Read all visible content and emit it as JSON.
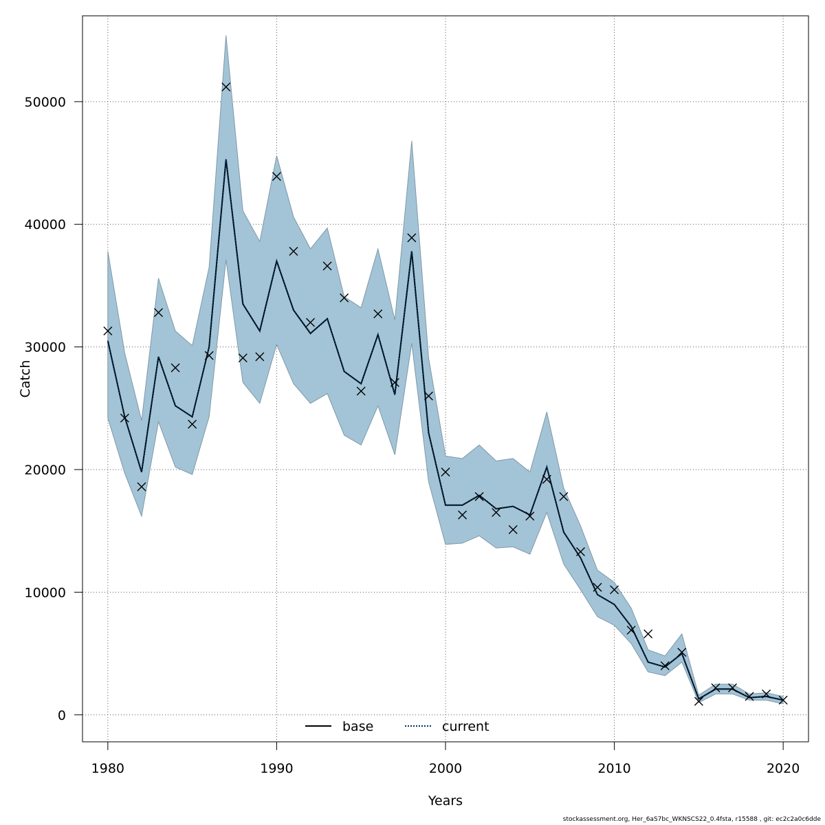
{
  "chart_data": {
    "type": "line",
    "xlabel": "Years",
    "ylabel": "Catch",
    "xlim": [
      1978.5,
      2021.5
    ],
    "ylim": [
      -2200,
      57000
    ],
    "x_ticks": [
      1980,
      1990,
      2000,
      2010,
      2020
    ],
    "y_ticks": [
      0,
      10000,
      20000,
      30000,
      40000,
      50000
    ],
    "grid": true,
    "legend_position": "bottom-center",
    "colors": {
      "band_fill": "#a3c4d6",
      "band_stroke": "#7f98a8",
      "current_line": "#00305a",
      "base_line": "#000000",
      "grid": "#555555"
    },
    "x": [
      1980,
      1981,
      1982,
      1983,
      1984,
      1985,
      1986,
      1987,
      1988,
      1989,
      1990,
      1991,
      1992,
      1993,
      1994,
      1995,
      1996,
      1997,
      1998,
      1999,
      2000,
      2001,
      2002,
      2003,
      2004,
      2005,
      2006,
      2007,
      2008,
      2009,
      2010,
      2011,
      2012,
      2013,
      2014,
      2015,
      2016,
      2017,
      2018,
      2019,
      2020
    ],
    "series": [
      {
        "name": "base",
        "style": "solid",
        "values": [
          30500,
          24300,
          19800,
          29200,
          25200,
          24300,
          30000,
          45300,
          33500,
          31300,
          37000,
          33000,
          31100,
          32300,
          28000,
          27000,
          31000,
          26100,
          37800,
          23000,
          17100,
          17100,
          17900,
          16800,
          17000,
          16300,
          20200,
          14900,
          12800,
          9800,
          9000,
          7200,
          4300,
          3900,
          5000,
          1300,
          2100,
          2100,
          1400,
          1500,
          1200
        ]
      },
      {
        "name": "current",
        "style": "dotted",
        "values": [
          30500,
          24300,
          19800,
          29200,
          25200,
          24300,
          30000,
          45300,
          33500,
          31300,
          37000,
          33000,
          31100,
          32300,
          28000,
          27000,
          31000,
          26100,
          37800,
          23000,
          17100,
          17100,
          17900,
          16800,
          17000,
          16300,
          20200,
          14900,
          12800,
          9800,
          9000,
          7200,
          4300,
          3900,
          5000,
          1300,
          2100,
          2100,
          1400,
          1500,
          1200
        ]
      }
    ],
    "band": {
      "upper": [
        37800,
        29500,
        24000,
        35600,
        31300,
        30100,
        36500,
        55400,
        41100,
        38600,
        45600,
        40600,
        38000,
        39700,
        34100,
        33200,
        38000,
        32200,
        46800,
        29100,
        21100,
        20900,
        22000,
        20700,
        20900,
        19800,
        24700,
        18500,
        15400,
        11800,
        10800,
        8700,
        5300,
        4800,
        6600,
        1600,
        2500,
        2500,
        1700,
        1800,
        1500
      ],
      "lower": [
        24200,
        19700,
        16200,
        23900,
        20200,
        19600,
        24300,
        37100,
        27100,
        25400,
        30200,
        27000,
        25400,
        26200,
        22800,
        22000,
        25200,
        21200,
        30300,
        19000,
        13900,
        14000,
        14600,
        13600,
        13700,
        13100,
        16500,
        12300,
        10200,
        8000,
        7300,
        5800,
        3500,
        3200,
        4300,
        1000,
        1700,
        1700,
        1200,
        1200,
        900
      ]
    },
    "observed": {
      "marker": "x",
      "values": [
        31300,
        24200,
        18600,
        32800,
        28300,
        23700,
        29300,
        51200,
        29100,
        29200,
        43900,
        37800,
        32000,
        36600,
        34000,
        26400,
        32700,
        27100,
        38900,
        26000,
        19800,
        16300,
        17800,
        16500,
        15100,
        16200,
        19200,
        17800,
        13300,
        10400,
        10200,
        6900,
        6600,
        4000,
        5100,
        1100,
        2200,
        2200,
        1500,
        1700,
        1200
      ]
    }
  },
  "legend": {
    "base_label": "base",
    "current_label": "current"
  },
  "footer": "stockassessment.org, Her_6aS7bc_WKNSCS22_0.4fsta, r15588 , git: ec2c2a0c6dde"
}
